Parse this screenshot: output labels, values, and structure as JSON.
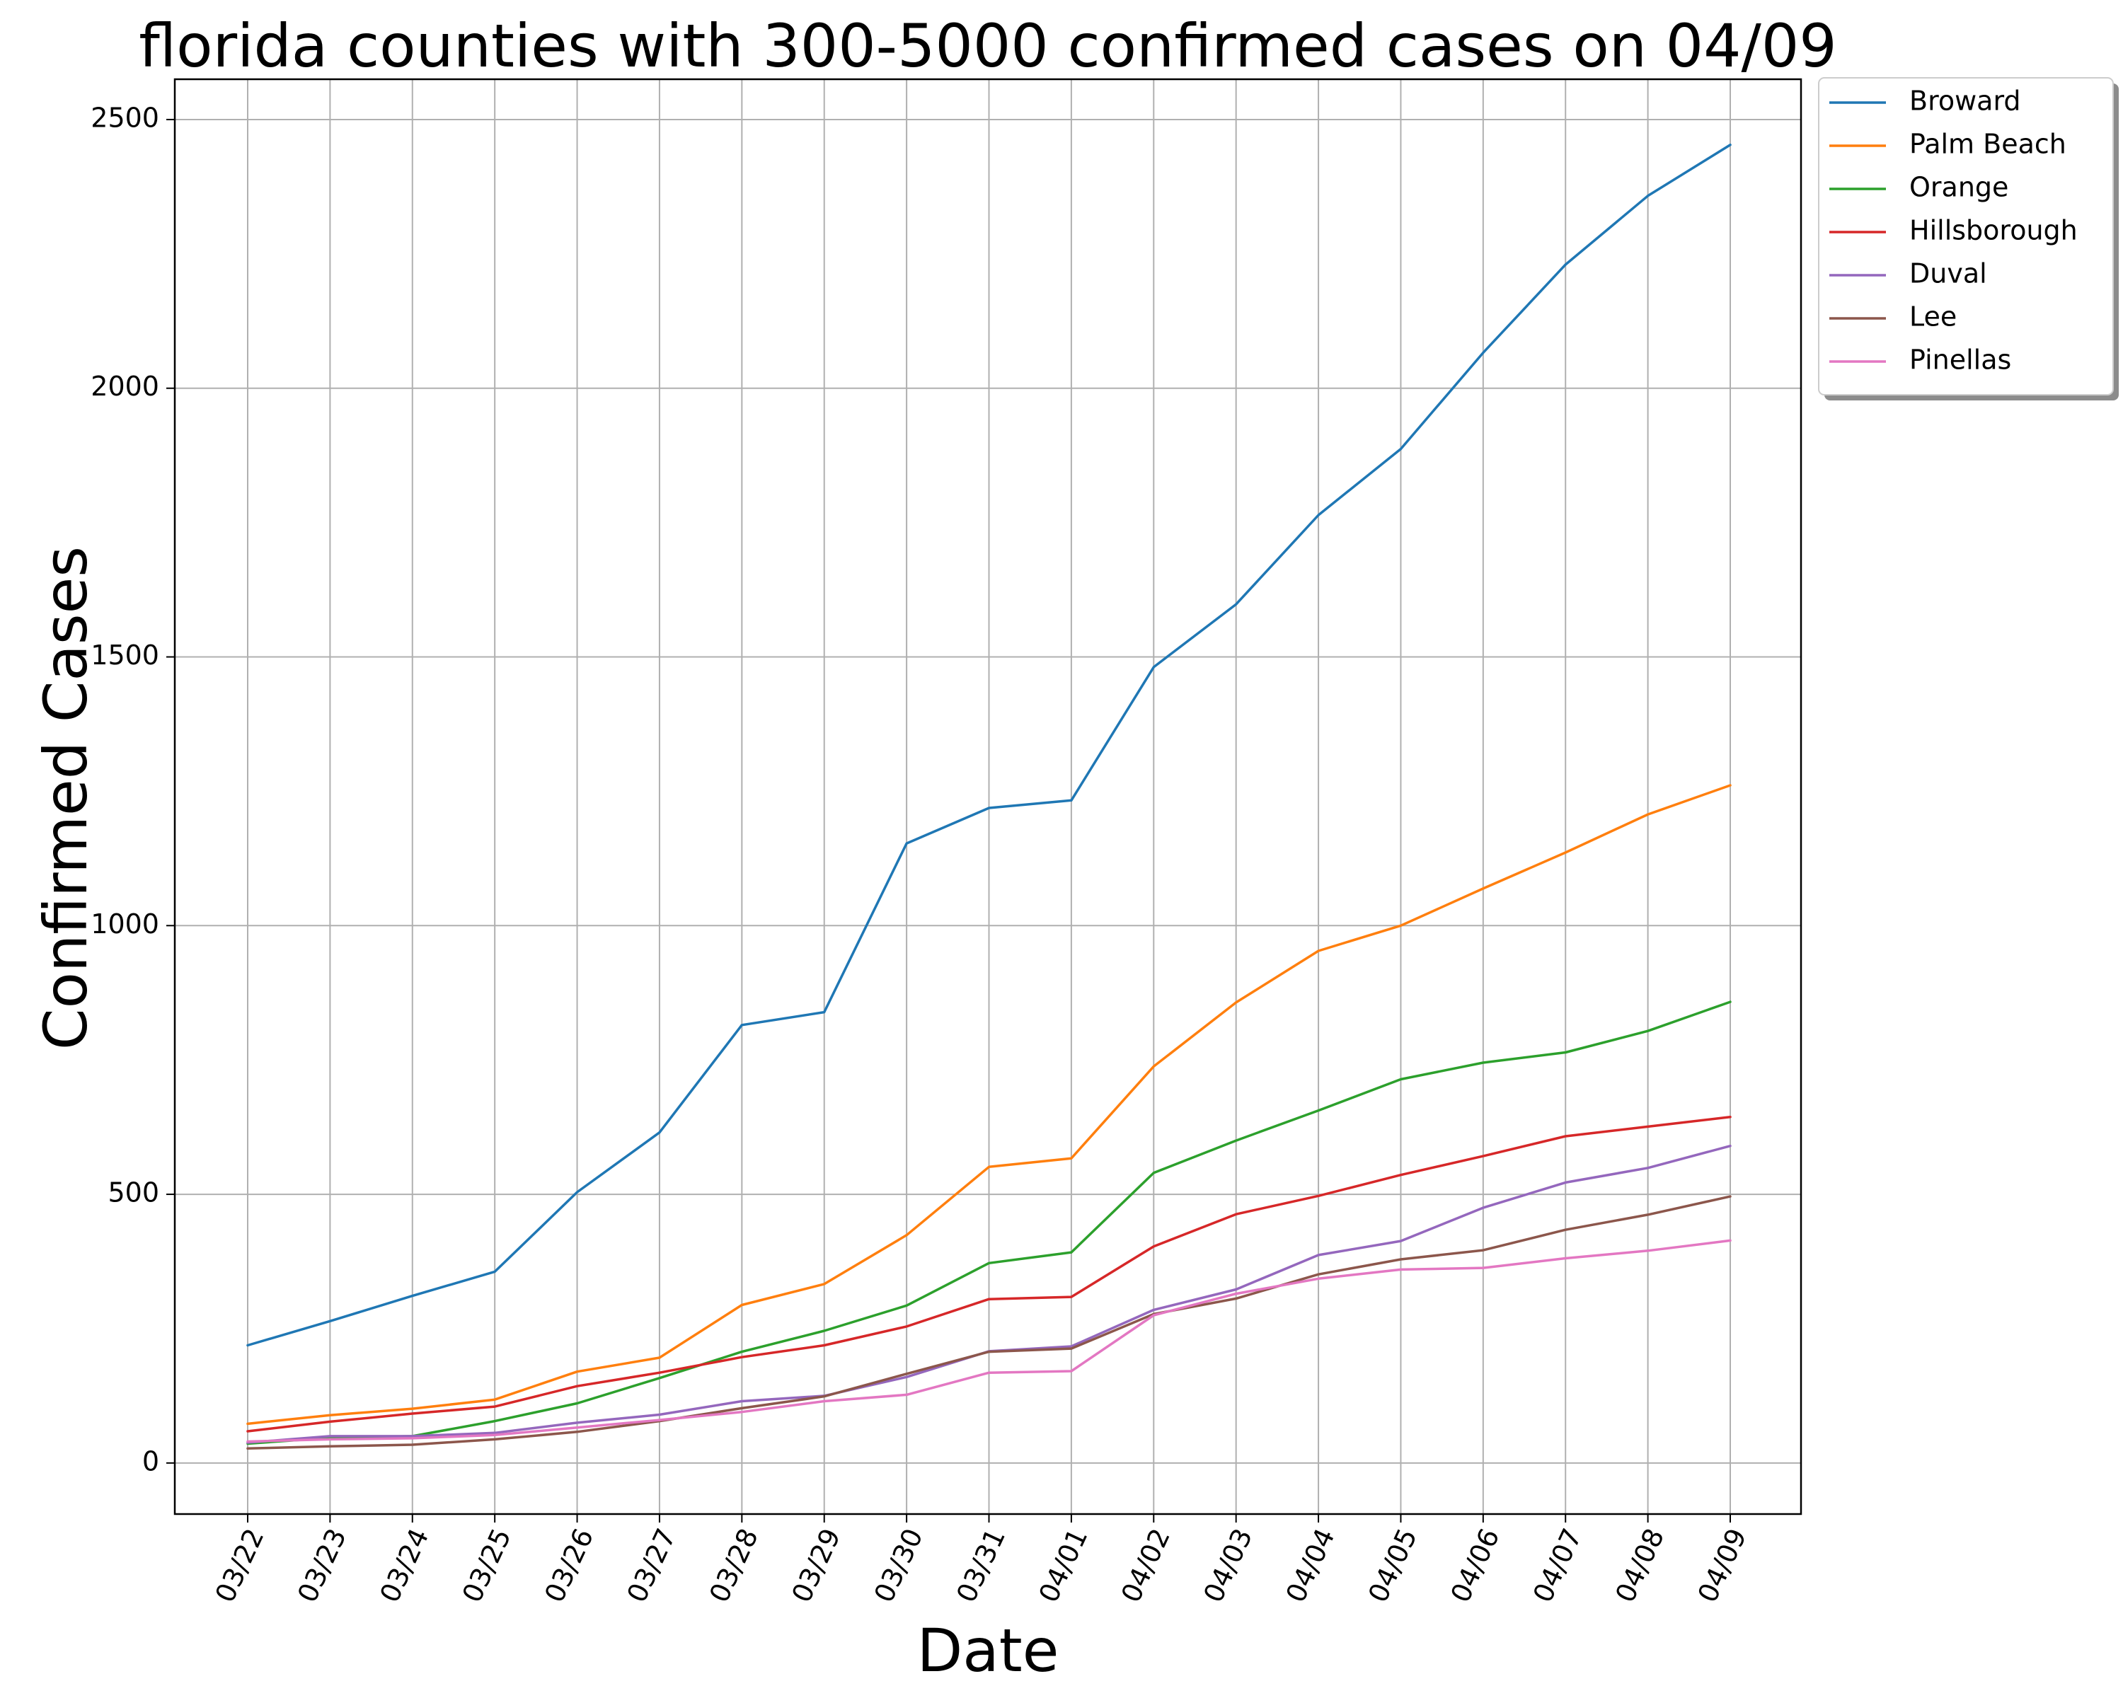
{
  "chart_data": {
    "type": "line",
    "title": "florida counties with 300-5000 confirmed cases on 04/09",
    "xlabel": "Date",
    "ylabel": "Confirmed Cases",
    "x": [
      "03/22",
      "03/23",
      "03/24",
      "03/25",
      "03/26",
      "03/27",
      "03/28",
      "03/29",
      "03/30",
      "03/31",
      "04/01",
      "04/02",
      "04/03",
      "04/04",
      "04/05",
      "04/06",
      "04/07",
      "04/08",
      "04/09"
    ],
    "ylim": [
      -95,
      2575
    ],
    "yticks": [
      0,
      500,
      1000,
      1500,
      2000,
      2500
    ],
    "grid": true,
    "legend_position": "outside-top-right",
    "series": [
      {
        "name": "Broward",
        "color": "#1f77b4",
        "values": [
          219,
          264,
          311,
          356,
          504,
          615,
          815,
          839,
          1153,
          1219,
          1233,
          1481,
          1598,
          1764,
          1887,
          2066,
          2230,
          2358,
          2453
        ]
      },
      {
        "name": "Palm Beach",
        "color": "#ff7f0e",
        "values": [
          73,
          89,
          101,
          118,
          170,
          196,
          294,
          333,
          424,
          551,
          567,
          738,
          857,
          953,
          1000,
          1069,
          1136,
          1207,
          1261
        ]
      },
      {
        "name": "Orange",
        "color": "#2ca02c",
        "values": [
          36,
          47,
          50,
          78,
          111,
          158,
          207,
          246,
          293,
          372,
          392,
          540,
          600,
          656,
          714,
          745,
          764,
          804,
          858
        ]
      },
      {
        "name": "Hillsborough",
        "color": "#d62728",
        "values": [
          59,
          77,
          92,
          105,
          143,
          168,
          197,
          219,
          254,
          305,
          309,
          403,
          463,
          497,
          536,
          571,
          608,
          626,
          644
        ]
      },
      {
        "name": "Duval",
        "color": "#9467bd",
        "values": [
          38,
          50,
          50,
          56,
          75,
          90,
          115,
          125,
          160,
          208,
          217,
          285,
          323,
          387,
          413,
          475,
          522,
          549,
          590
        ]
      },
      {
        "name": "Lee",
        "color": "#8c564b",
        "values": [
          27,
          31,
          34,
          44,
          58,
          78,
          102,
          124,
          166,
          207,
          213,
          277,
          306,
          351,
          379,
          396,
          434,
          462,
          496
        ]
      },
      {
        "name": "Pinellas",
        "color": "#e377c2",
        "values": [
          40,
          44,
          46,
          52,
          66,
          80,
          95,
          115,
          127,
          168,
          171,
          275,
          315,
          343,
          360,
          363,
          381,
          395,
          414
        ]
      }
    ]
  }
}
